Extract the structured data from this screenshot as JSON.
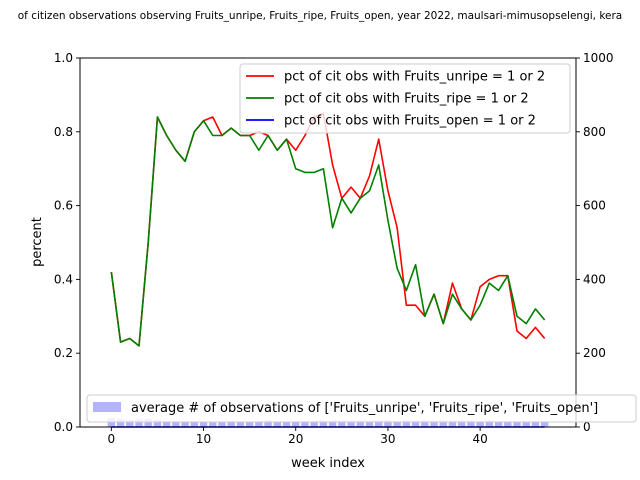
{
  "chart_data": {
    "type": "line",
    "title": "of citizen observations observing Fruits_unripe, Fruits_ripe, Fruits_open, year 2022, maulsari-mimusopselengi, kera",
    "xlabel": "week index",
    "ylabel": "percent",
    "xlim": [
      -3.4,
      50.4
    ],
    "ylim": [
      0,
      1
    ],
    "ylim_right": [
      0,
      1000
    ],
    "x_ticks": [
      0,
      10,
      20,
      30,
      40
    ],
    "y_ticks": [
      0.0,
      0.2,
      0.4,
      0.6,
      0.8,
      1.0
    ],
    "y_ticks_right": [
      0,
      200,
      400,
      600,
      800,
      1000
    ],
    "x_tick_labels": [
      "0",
      "10",
      "20",
      "30",
      "40"
    ],
    "y_tick_labels": [
      "0.0",
      "0.2",
      "0.4",
      "0.6",
      "0.8",
      "1.0"
    ],
    "y_tick_labels_right": [
      "0",
      "200",
      "400",
      "600",
      "800",
      "1000"
    ],
    "grid": false,
    "legend_position": "top-right",
    "x": [
      0,
      1,
      2,
      3,
      4,
      5,
      6,
      7,
      8,
      9,
      10,
      11,
      12,
      13,
      14,
      15,
      16,
      17,
      18,
      19,
      20,
      21,
      22,
      23,
      24,
      25,
      26,
      27,
      28,
      29,
      30,
      31,
      32,
      33,
      34,
      35,
      36,
      37,
      38,
      39,
      40,
      41,
      42,
      43,
      44,
      45,
      46,
      47
    ],
    "series": [
      {
        "name": "pct of cit obs with Fruits_unripe = 1 or 2",
        "color": "#ff0000",
        "values": [
          0.42,
          0.23,
          0.24,
          0.22,
          0.5,
          0.84,
          0.79,
          0.75,
          0.72,
          0.8,
          0.83,
          0.84,
          0.79,
          0.81,
          0.79,
          0.79,
          0.8,
          0.79,
          0.75,
          0.78,
          0.75,
          0.79,
          0.84,
          0.85,
          0.71,
          0.62,
          0.65,
          0.62,
          0.68,
          0.78,
          0.64,
          0.54,
          0.33,
          0.33,
          0.3,
          0.36,
          0.28,
          0.39,
          0.32,
          0.29,
          0.38,
          0.4,
          0.41,
          0.41,
          0.26,
          0.24,
          0.27,
          0.24
        ]
      },
      {
        "name": "pct of cit obs with Fruits_ripe = 1 or 2",
        "color": "#008000",
        "values": [
          0.42,
          0.23,
          0.24,
          0.22,
          0.5,
          0.84,
          0.79,
          0.75,
          0.72,
          0.8,
          0.83,
          0.79,
          0.79,
          0.81,
          0.79,
          0.79,
          0.75,
          0.79,
          0.75,
          0.78,
          0.7,
          0.69,
          0.69,
          0.7,
          0.54,
          0.62,
          0.58,
          0.62,
          0.64,
          0.71,
          0.56,
          0.43,
          0.37,
          0.44,
          0.3,
          0.36,
          0.28,
          0.36,
          0.32,
          0.29,
          0.33,
          0.39,
          0.37,
          0.41,
          0.3,
          0.28,
          0.32,
          0.29
        ]
      },
      {
        "name": "pct of cit obs with Fruits_open = 1 or 2",
        "color": "#0000ff",
        "values": [
          0,
          0,
          0,
          0,
          0,
          0,
          0,
          0,
          0,
          0,
          0,
          0,
          0,
          0,
          0,
          0,
          0,
          0,
          0,
          0,
          0,
          0,
          0,
          0,
          0,
          0,
          0,
          0,
          0,
          0,
          0,
          0,
          0,
          0,
          0,
          0,
          0,
          0,
          0,
          0,
          0,
          0,
          0,
          0,
          0,
          0,
          0,
          0
        ]
      }
    ],
    "bar_series": {
      "name": "average # of observations of ['Fruits_unripe', 'Fruits_ripe', 'Fruits_open']",
      "color": "#9999ff",
      "axis": "right",
      "values": [
        24,
        22,
        20,
        22,
        22,
        20,
        16,
        16,
        16,
        16,
        14,
        14,
        14,
        16,
        14,
        14,
        16,
        18,
        14,
        16,
        16,
        16,
        16,
        18,
        18,
        18,
        18,
        18,
        18,
        18,
        18,
        16,
        18,
        18,
        18,
        18,
        18,
        18,
        18,
        18,
        16,
        18,
        16,
        16,
        16,
        16,
        16,
        16
      ]
    }
  }
}
